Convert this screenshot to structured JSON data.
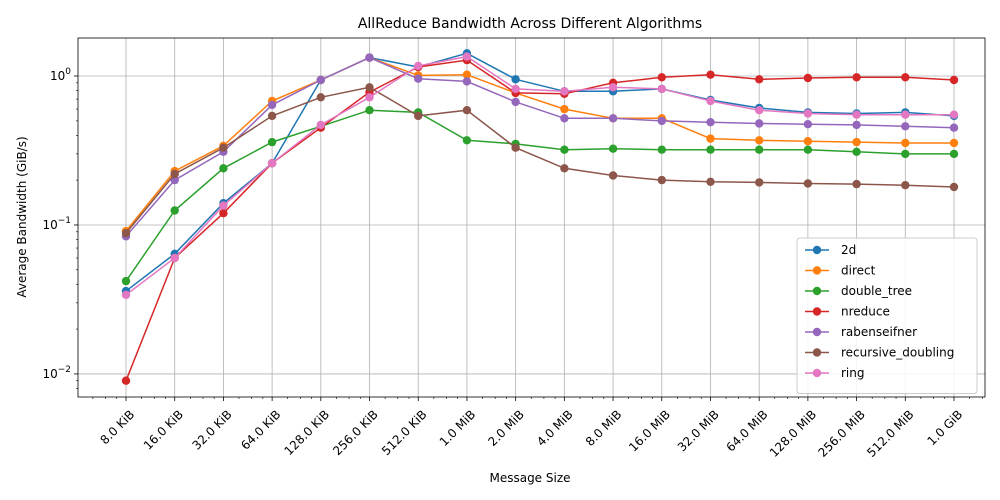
{
  "chart_data": {
    "type": "line",
    "title": "AllReduce Bandwidth Across Different Algorithms",
    "xlabel": "Message Size",
    "ylabel": "Average Bandwidth (GiB/s)",
    "yscale": "log",
    "xscale": "log2",
    "ylim": [
      0.007,
      1.8
    ],
    "grid": true,
    "legend_position": "lower-right",
    "categories": [
      "8.0 KiB",
      "16.0 KiB",
      "32.0 KiB",
      "64.0 KiB",
      "128.0 KiB",
      "256.0 KiB",
      "512.0 KiB",
      "1.0 MiB",
      "2.0 MiB",
      "4.0 MiB",
      "8.0 MiB",
      "16.0 MiB",
      "32.0 MiB",
      "64.0 MiB",
      "128.0 MiB",
      "256.0 MiB",
      "512.0 MiB",
      "1.0 GiB"
    ],
    "y_ticks": [
      {
        "value": 0.01,
        "base": "10",
        "exp": "−2"
      },
      {
        "value": 0.1,
        "base": "10",
        "exp": "−1"
      },
      {
        "value": 1,
        "base": "10",
        "exp": "0"
      }
    ],
    "series": [
      {
        "name": "2d",
        "color": "#1f77b4",
        "values": [
          0.036,
          0.064,
          0.14,
          0.26,
          0.94,
          1.33,
          1.15,
          1.42,
          0.95,
          0.79,
          0.79,
          0.82,
          0.69,
          0.61,
          0.57,
          0.56,
          0.57,
          0.54
        ]
      },
      {
        "name": "direct",
        "color": "#ff7f0e",
        "values": [
          0.091,
          0.23,
          0.34,
          0.68,
          0.94,
          1.33,
          1.01,
          1.02,
          0.77,
          0.6,
          0.52,
          0.52,
          0.38,
          0.37,
          0.365,
          0.36,
          0.355,
          0.355
        ]
      },
      {
        "name": "double_tree",
        "color": "#2ca02c",
        "values": [
          0.042,
          0.125,
          0.24,
          0.36,
          0.46,
          0.59,
          0.57,
          0.37,
          0.35,
          0.32,
          0.325,
          0.32,
          0.32,
          0.32,
          0.32,
          0.31,
          0.3,
          0.3
        ]
      },
      {
        "name": "nreduce",
        "color": "#d62728",
        "values": [
          0.009,
          0.06,
          0.12,
          0.26,
          0.45,
          0.78,
          1.15,
          1.28,
          0.77,
          0.76,
          0.9,
          0.98,
          1.02,
          0.95,
          0.97,
          0.98,
          0.98,
          0.94
        ]
      },
      {
        "name": "rabenseifner",
        "color": "#9467bd",
        "values": [
          0.084,
          0.2,
          0.31,
          0.64,
          0.94,
          1.33,
          0.96,
          0.92,
          0.67,
          0.52,
          0.52,
          0.5,
          0.49,
          0.48,
          0.475,
          0.47,
          0.46,
          0.45
        ]
      },
      {
        "name": "recursive_doubling",
        "color": "#8c564b",
        "values": [
          0.088,
          0.22,
          0.33,
          0.54,
          0.72,
          0.84,
          0.54,
          0.59,
          0.33,
          0.24,
          0.215,
          0.2,
          0.195,
          0.193,
          0.19,
          0.188,
          0.185,
          0.18
        ]
      },
      {
        "name": "ring",
        "color": "#e377c2",
        "values": [
          0.034,
          0.06,
          0.135,
          0.26,
          0.47,
          0.72,
          1.17,
          1.35,
          0.82,
          0.79,
          0.84,
          0.82,
          0.68,
          0.59,
          0.56,
          0.55,
          0.55,
          0.55
        ]
      }
    ]
  }
}
